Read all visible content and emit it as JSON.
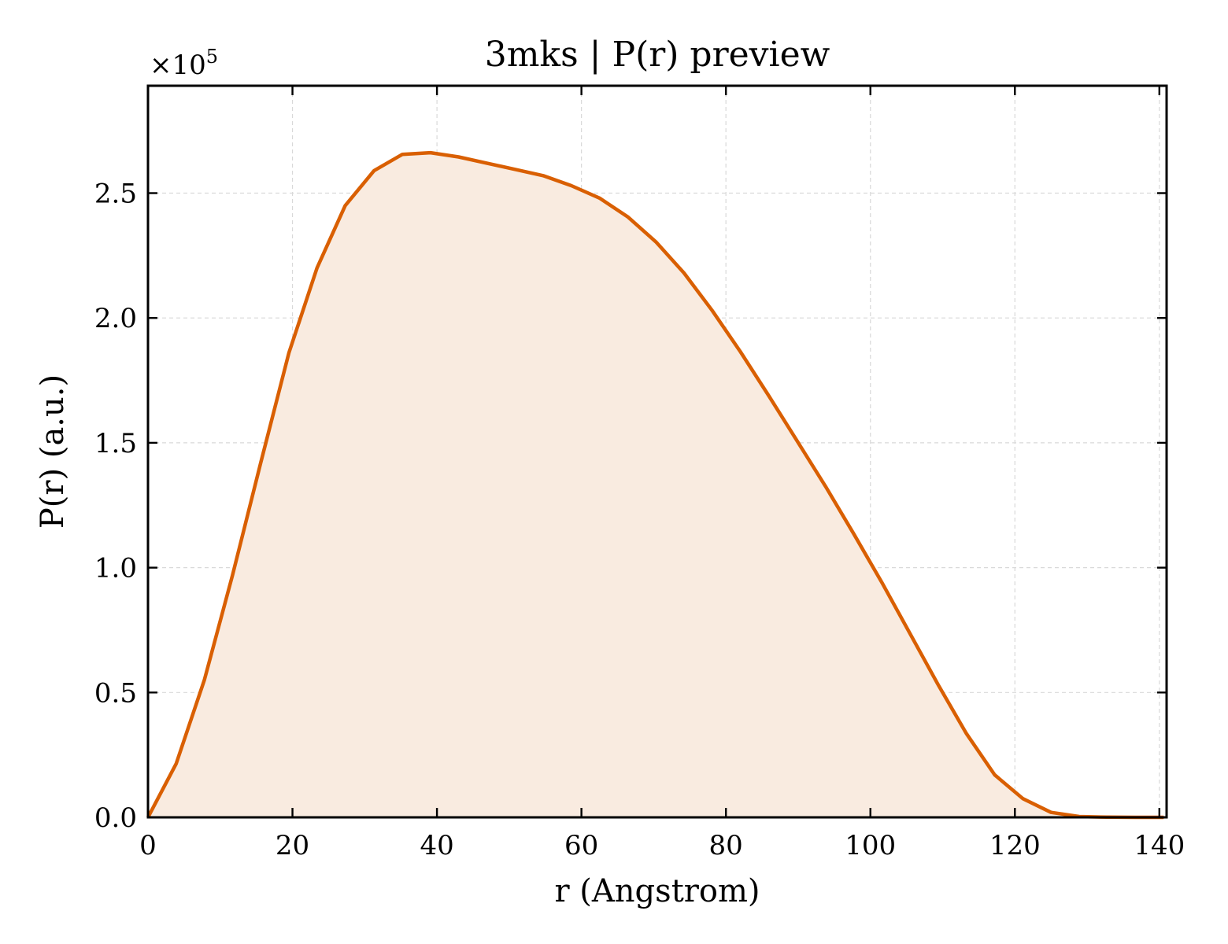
{
  "chart_data": {
    "type": "area",
    "title": "3mks | P(r) preview",
    "xlabel": "r (Angstrom)",
    "ylabel": "P(r) (a.u.)",
    "y_multiplier_label": "×10",
    "y_multiplier_exponent": "5",
    "y_scale_factor": 100000,
    "xlim": [
      0,
      141
    ],
    "ylim": [
      0,
      293000
    ],
    "grid": true,
    "xticks": [
      0,
      20,
      40,
      60,
      80,
      100,
      120,
      140
    ],
    "xtick_labels": [
      "0",
      "20",
      "40",
      "60",
      "80",
      "100",
      "120",
      "140"
    ],
    "yticks": [
      0,
      50000,
      100000,
      150000,
      200000,
      250000
    ],
    "ytick_labels": [
      "0.0",
      "0.5",
      "1.0",
      "1.5",
      "2.0",
      "2.5"
    ],
    "line_color": "#d95f02",
    "fill_color": "#f9ebe0",
    "series": [
      {
        "x": [
          0,
          3.9,
          7.8,
          11.7,
          15.6,
          19.5,
          23.4,
          27.3,
          31.3,
          35.2,
          39.1,
          43.0,
          46.9,
          50.8,
          54.7,
          58.6,
          62.5,
          66.4,
          70.3,
          74.2,
          78.1,
          82.0,
          85.9,
          89.8,
          93.8,
          97.7,
          101.6,
          105.5,
          109.4,
          113.3,
          117.2,
          121.1,
          125.0,
          128.9,
          132.8,
          136.7,
          140.6
        ],
        "values": [
          0,
          21500,
          55000,
          97000,
          142000,
          186000,
          220000,
          245000,
          259000,
          265500,
          266200,
          264500,
          262000,
          259500,
          257000,
          253000,
          248000,
          240500,
          230500,
          218000,
          203000,
          186500,
          169000,
          151000,
          132500,
          113500,
          94000,
          73500,
          53000,
          33500,
          17000,
          7500,
          2000,
          300,
          50,
          0,
          0
        ]
      }
    ]
  }
}
